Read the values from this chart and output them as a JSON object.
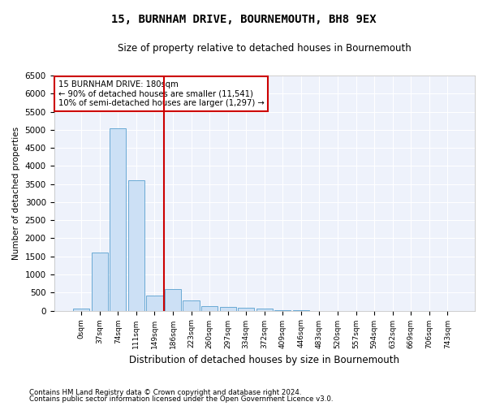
{
  "title": "15, BURNHAM DRIVE, BOURNEMOUTH, BH8 9EX",
  "subtitle": "Size of property relative to detached houses in Bournemouth",
  "xlabel": "Distribution of detached houses by size in Bournemouth",
  "ylabel": "Number of detached properties",
  "bar_color": "#cce0f5",
  "bar_edge_color": "#6aaad4",
  "background_color": "#eef2fb",
  "grid_color": "#ffffff",
  "annotation_box_color": "#cc0000",
  "vline_color": "#cc0000",
  "annotation_line1": "15 BURNHAM DRIVE: 180sqm",
  "annotation_line2": "← 90% of detached houses are smaller (11,541)",
  "annotation_line3": "10% of semi-detached houses are larger (1,297) →",
  "footnote1": "Contains HM Land Registry data © Crown copyright and database right 2024.",
  "footnote2": "Contains public sector information licensed under the Open Government Licence v3.0.",
  "categories": [
    "0sqm",
    "37sqm",
    "74sqm",
    "111sqm",
    "149sqm",
    "186sqm",
    "223sqm",
    "260sqm",
    "297sqm",
    "334sqm",
    "372sqm",
    "409sqm",
    "446sqm",
    "483sqm",
    "520sqm",
    "557sqm",
    "594sqm",
    "632sqm",
    "669sqm",
    "706sqm",
    "743sqm"
  ],
  "values": [
    50,
    1600,
    5050,
    3600,
    420,
    600,
    280,
    120,
    110,
    80,
    50,
    10,
    5,
    0,
    0,
    0,
    0,
    0,
    0,
    0,
    0
  ],
  "ylim": [
    0,
    6500
  ],
  "yticks": [
    0,
    500,
    1000,
    1500,
    2000,
    2500,
    3000,
    3500,
    4000,
    4500,
    5000,
    5500,
    6000,
    6500
  ],
  "vline_index": 5
}
